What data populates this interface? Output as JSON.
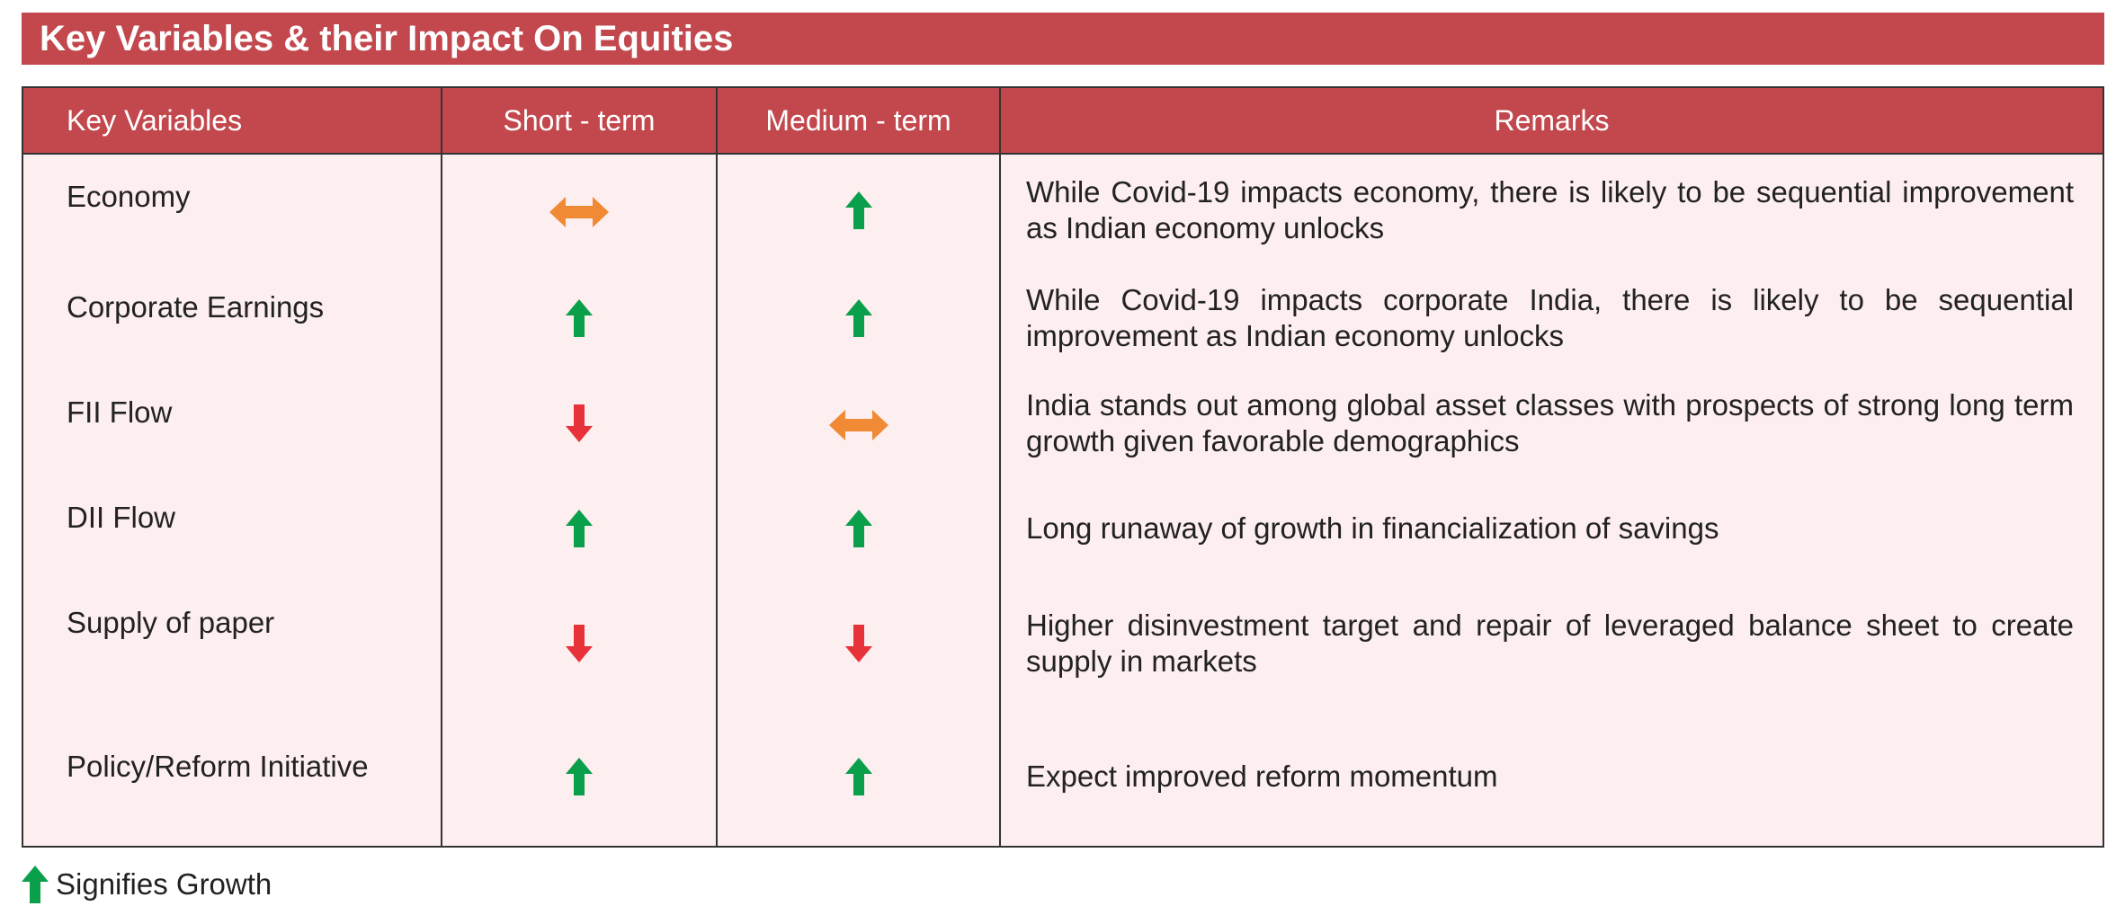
{
  "title": "Key Variables & their Impact On Equities",
  "columns": {
    "variable": "Key Variables",
    "short_term": "Short  - term",
    "medium_term": "Medium - term",
    "remarks": "Remarks"
  },
  "icon_colors": {
    "up": "#0aa04b",
    "down": "#e8323a",
    "neutral": "#f08a34"
  },
  "rows": [
    {
      "variable": "Economy",
      "short_term": "neutral",
      "medium_term": "up",
      "remark": "While Covid-19 impacts economy, there is likely to be sequential improvement as Indian economy unlocks"
    },
    {
      "variable": "Corporate Earnings",
      "short_term": "up",
      "medium_term": "up",
      "remark": "While Covid-19 impacts corporate India, there is likely to be sequential improvement as Indian economy unlocks"
    },
    {
      "variable": "FII Flow",
      "short_term": "down",
      "medium_term": "neutral",
      "remark": "India stands out among global asset classes with prospects of strong long term growth given favorable demographics"
    },
    {
      "variable": "DII Flow",
      "short_term": "up",
      "medium_term": "up",
      "remark": "Long runaway of growth in financialization of savings"
    },
    {
      "variable": "Supply of paper",
      "short_term": "down",
      "medium_term": "down",
      "remark": "Higher disinvestment target and repair of leveraged balance sheet to create supply in markets"
    },
    {
      "variable": "Policy/Reform Initiative",
      "short_term": "up",
      "medium_term": "up",
      "remark": "Expect improved reform momentum"
    }
  ],
  "legend": {
    "icon": "up",
    "text": "Signifies Growth"
  }
}
